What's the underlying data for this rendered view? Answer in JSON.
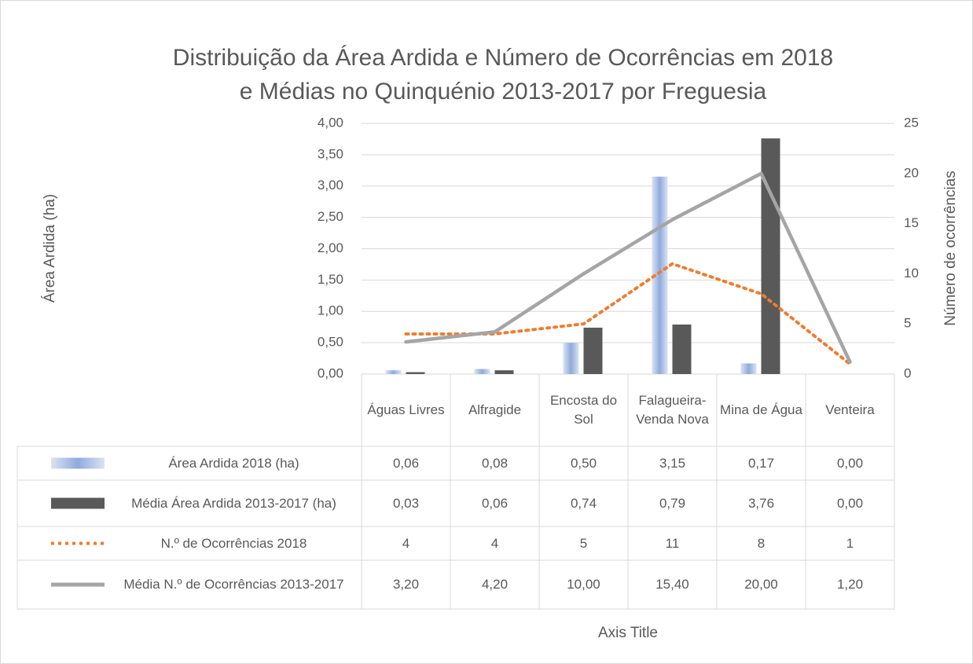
{
  "chart_data": {
    "type": "bar_line_combo",
    "title": "Distribuição da Área Ardida e Número de Ocorrências em 2018 e Médias no Quinquénio 2013-2017 por Freguesia",
    "y_label": "Área Ardida (ha)",
    "y2_label": "Número de ocorrências",
    "x_label": "Axis Title",
    "categories": [
      "Águas Livres",
      "Alfragide",
      "Encosta do Sol",
      "Falagueira-Venda Nova",
      "Mina de Água",
      "Venteira"
    ],
    "series": [
      {
        "name": "Área Ardida 2018 (ha)",
        "kind": "bar",
        "color": "#8faadc",
        "values": [
          0.06,
          0.08,
          0.5,
          3.15,
          0.17,
          0
        ],
        "value_labels": [
          "0,06",
          "0,08",
          "0,50",
          "3,15",
          "0,17",
          "0,00"
        ]
      },
      {
        "name": "Média Área Ardida 2013-2017 (ha)",
        "kind": "bar",
        "color": "#595959",
        "values": [
          0.03,
          0.06,
          0.74,
          0.79,
          3.76,
          0
        ],
        "value_labels": [
          "0,03",
          "0,06",
          "0,74",
          "0,79",
          "3,76",
          "0,00"
        ]
      },
      {
        "name": "N.º de Ocorrências 2018",
        "kind": "line",
        "style": "dotted",
        "axis": "y2",
        "color": "#ed7d31",
        "values": [
          4,
          4,
          5,
          11,
          8,
          1
        ]
      },
      {
        "name": "Média N.º de Ocorrências 2013-2017",
        "kind": "line",
        "style": "solid",
        "axis": "y2",
        "color": "#a5a5a5",
        "values": [
          3.2,
          4.2,
          10,
          15.4,
          20,
          1.2
        ],
        "value_labels": [
          "3,20",
          "4,20",
          "10,00",
          "15,40",
          "20,00",
          "1,20"
        ]
      }
    ],
    "ylim": [
      0,
      4
    ],
    "yticks": [
      {
        "value": 0,
        "label": "0,00"
      },
      {
        "value": 0.5,
        "label": "0,50"
      },
      {
        "value": 1,
        "label": "1,00"
      },
      {
        "value": 1.5,
        "label": "1,50"
      },
      {
        "value": 2,
        "label": "2,00"
      },
      {
        "value": 2.5,
        "label": "2,50"
      },
      {
        "value": 3,
        "label": "3,00"
      },
      {
        "value": 3.5,
        "label": "3,50"
      },
      {
        "value": 4,
        "label": "4,00"
      }
    ],
    "y2lim": [
      0,
      25
    ],
    "y2ticks": [
      0,
      5,
      10,
      15,
      20,
      25
    ],
    "grid": true,
    "data_table": true
  }
}
